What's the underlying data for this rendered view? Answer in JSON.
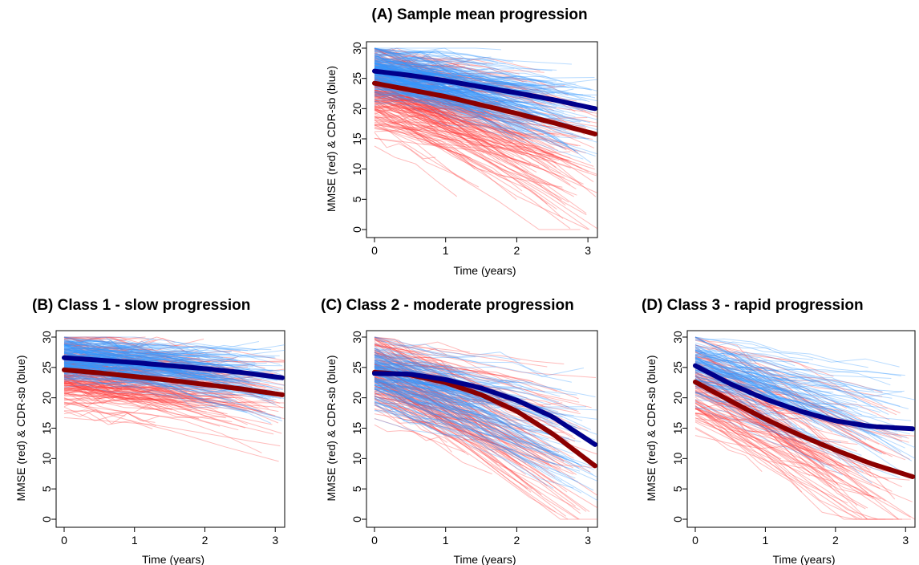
{
  "colors": {
    "mmse_individual": "#ff3b3b",
    "cdr_individual": "#3399ff",
    "mmse_mean": "#8b0000",
    "cdr_mean": "#00008b"
  },
  "chart_data": [
    {
      "id": "A",
      "type": "line",
      "title": "(A) Sample mean progression",
      "xlabel": "Time (years)",
      "ylabel": "MMSE (red) & CDR-sb (blue)",
      "xlim": [
        0,
        3.1
      ],
      "ylim": [
        0,
        30
      ],
      "xticks": [
        "0",
        "1",
        "2",
        "3"
      ],
      "yticks": [
        "0",
        "5",
        "10",
        "15",
        "20",
        "25",
        "30"
      ],
      "grid": false,
      "series": [
        {
          "name": "MMSE (red)",
          "x": [
            0,
            0.5,
            1,
            1.5,
            2,
            2.5,
            3.1
          ],
          "y": [
            24.2,
            23.1,
            22.0,
            20.6,
            19.2,
            17.7,
            15.8
          ]
        },
        {
          "name": "CDR-sb (blue)",
          "x": [
            0,
            0.5,
            1,
            1.5,
            2,
            2.5,
            3.1
          ],
          "y": [
            26.2,
            25.5,
            24.6,
            23.6,
            22.6,
            21.5,
            20.0
          ]
        }
      ]
    },
    {
      "id": "B",
      "type": "line",
      "title": "(B) Class 1 - slow progression",
      "xlabel": "Time (years)",
      "ylabel": "MMSE (red) & CDR-sb (blue)",
      "xlim": [
        0,
        3.1
      ],
      "ylim": [
        0,
        30
      ],
      "xticks": [
        "0",
        "1",
        "2",
        "3"
      ],
      "yticks": [
        "0",
        "5",
        "10",
        "15",
        "20",
        "25",
        "30"
      ],
      "grid": false,
      "series": [
        {
          "name": "MMSE (red)",
          "x": [
            0,
            0.5,
            1,
            1.5,
            2,
            2.5,
            3.1
          ],
          "y": [
            24.6,
            24.1,
            23.5,
            22.9,
            22.2,
            21.5,
            20.5
          ]
        },
        {
          "name": "CDR-sb (blue)",
          "x": [
            0,
            0.5,
            1,
            1.5,
            2,
            2.5,
            3.1
          ],
          "y": [
            26.6,
            26.2,
            25.8,
            25.3,
            24.8,
            24.2,
            23.3
          ]
        }
      ]
    },
    {
      "id": "C",
      "type": "line",
      "title": "(C) Class 2 - moderate progression",
      "xlabel": "Time (years)",
      "ylabel": "MMSE (red)  & CDR-sb (blue)",
      "xlim": [
        0,
        3.1
      ],
      "ylim": [
        0,
        30
      ],
      "xticks": [
        "0",
        "1",
        "2",
        "3"
      ],
      "yticks": [
        "0",
        "5",
        "10",
        "15",
        "20",
        "25",
        "30"
      ],
      "grid": false,
      "series": [
        {
          "name": "MMSE (red)",
          "x": [
            0,
            0.5,
            1,
            1.5,
            2,
            2.5,
            3.1
          ],
          "y": [
            24.2,
            23.8,
            22.5,
            20.5,
            17.8,
            14.1,
            8.8
          ]
        },
        {
          "name": "CDR-sb (blue)",
          "x": [
            0,
            0.5,
            1,
            1.5,
            2,
            2.5,
            3.1
          ],
          "y": [
            24.0,
            23.9,
            23.0,
            21.6,
            19.6,
            16.9,
            12.3
          ]
        }
      ]
    },
    {
      "id": "D",
      "type": "line",
      "title": "(D) Class 3 - rapid progression",
      "xlabel": "Time (years)",
      "ylabel": "MMSE (red) & CDR-sb (blue)",
      "xlim": [
        0,
        3.1
      ],
      "ylim": [
        0,
        30
      ],
      "xticks": [
        "0",
        "1",
        "2",
        "3"
      ],
      "yticks": [
        "0",
        "5",
        "10",
        "15",
        "20",
        "25",
        "30"
      ],
      "grid": false,
      "series": [
        {
          "name": "MMSE (red)",
          "x": [
            0,
            0.5,
            1,
            1.5,
            2,
            2.5,
            3.1
          ],
          "y": [
            22.6,
            19.5,
            16.5,
            13.8,
            11.4,
            9.2,
            7.0
          ]
        },
        {
          "name": "CDR-sb (blue)",
          "x": [
            0,
            0.5,
            1,
            1.5,
            2,
            2.5,
            3.1
          ],
          "y": [
            25.3,
            22.3,
            19.8,
            17.8,
            16.2,
            15.3,
            14.9
          ]
        }
      ]
    }
  ]
}
